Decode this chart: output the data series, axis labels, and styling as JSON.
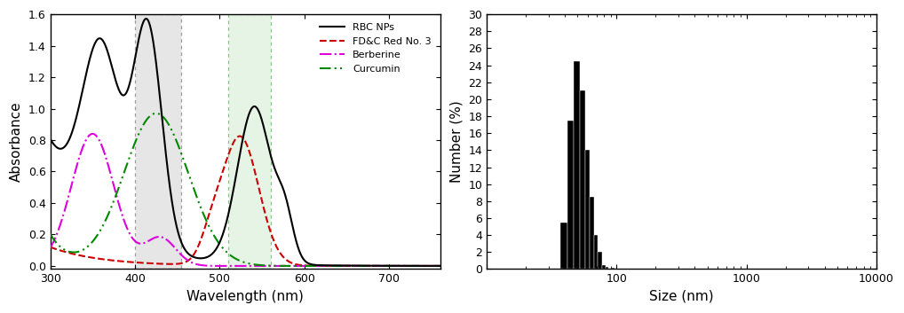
{
  "left_plot": {
    "xlabel": "Wavelength (nm)",
    "ylabel": "Absorbance",
    "xlim": [
      300,
      760
    ],
    "ylim": [
      -0.02,
      1.6
    ],
    "yticks": [
      0.0,
      0.2,
      0.4,
      0.6,
      0.8,
      1.0,
      1.2,
      1.4,
      1.6
    ],
    "xticks": [
      300,
      400,
      500,
      600,
      700
    ],
    "shaded_region1": [
      400,
      455
    ],
    "shaded_region2": [
      510,
      560
    ]
  },
  "right_plot": {
    "xlabel": "Size (nm)",
    "ylabel": "Number (%)",
    "ylim": [
      0,
      30
    ],
    "yticks": [
      0,
      2,
      4,
      6,
      8,
      10,
      12,
      14,
      16,
      18,
      20,
      22,
      24,
      26,
      28,
      30
    ],
    "xlim_low": 10,
    "xlim_high": 10000,
    "bar_left_edges": [
      32,
      37,
      42,
      47,
      52,
      57,
      62,
      67,
      72,
      77,
      82,
      92,
      112
    ],
    "bar_widths": [
      5,
      5,
      5,
      5,
      5,
      5,
      5,
      5,
      5,
      5,
      5,
      5,
      5
    ],
    "bar_values": [
      0.0,
      5.5,
      17.5,
      24.5,
      21.0,
      14.0,
      8.5,
      4.0,
      2.0,
      0.5,
      0.3,
      0.2,
      0.1
    ],
    "bar_color": "#000000"
  }
}
